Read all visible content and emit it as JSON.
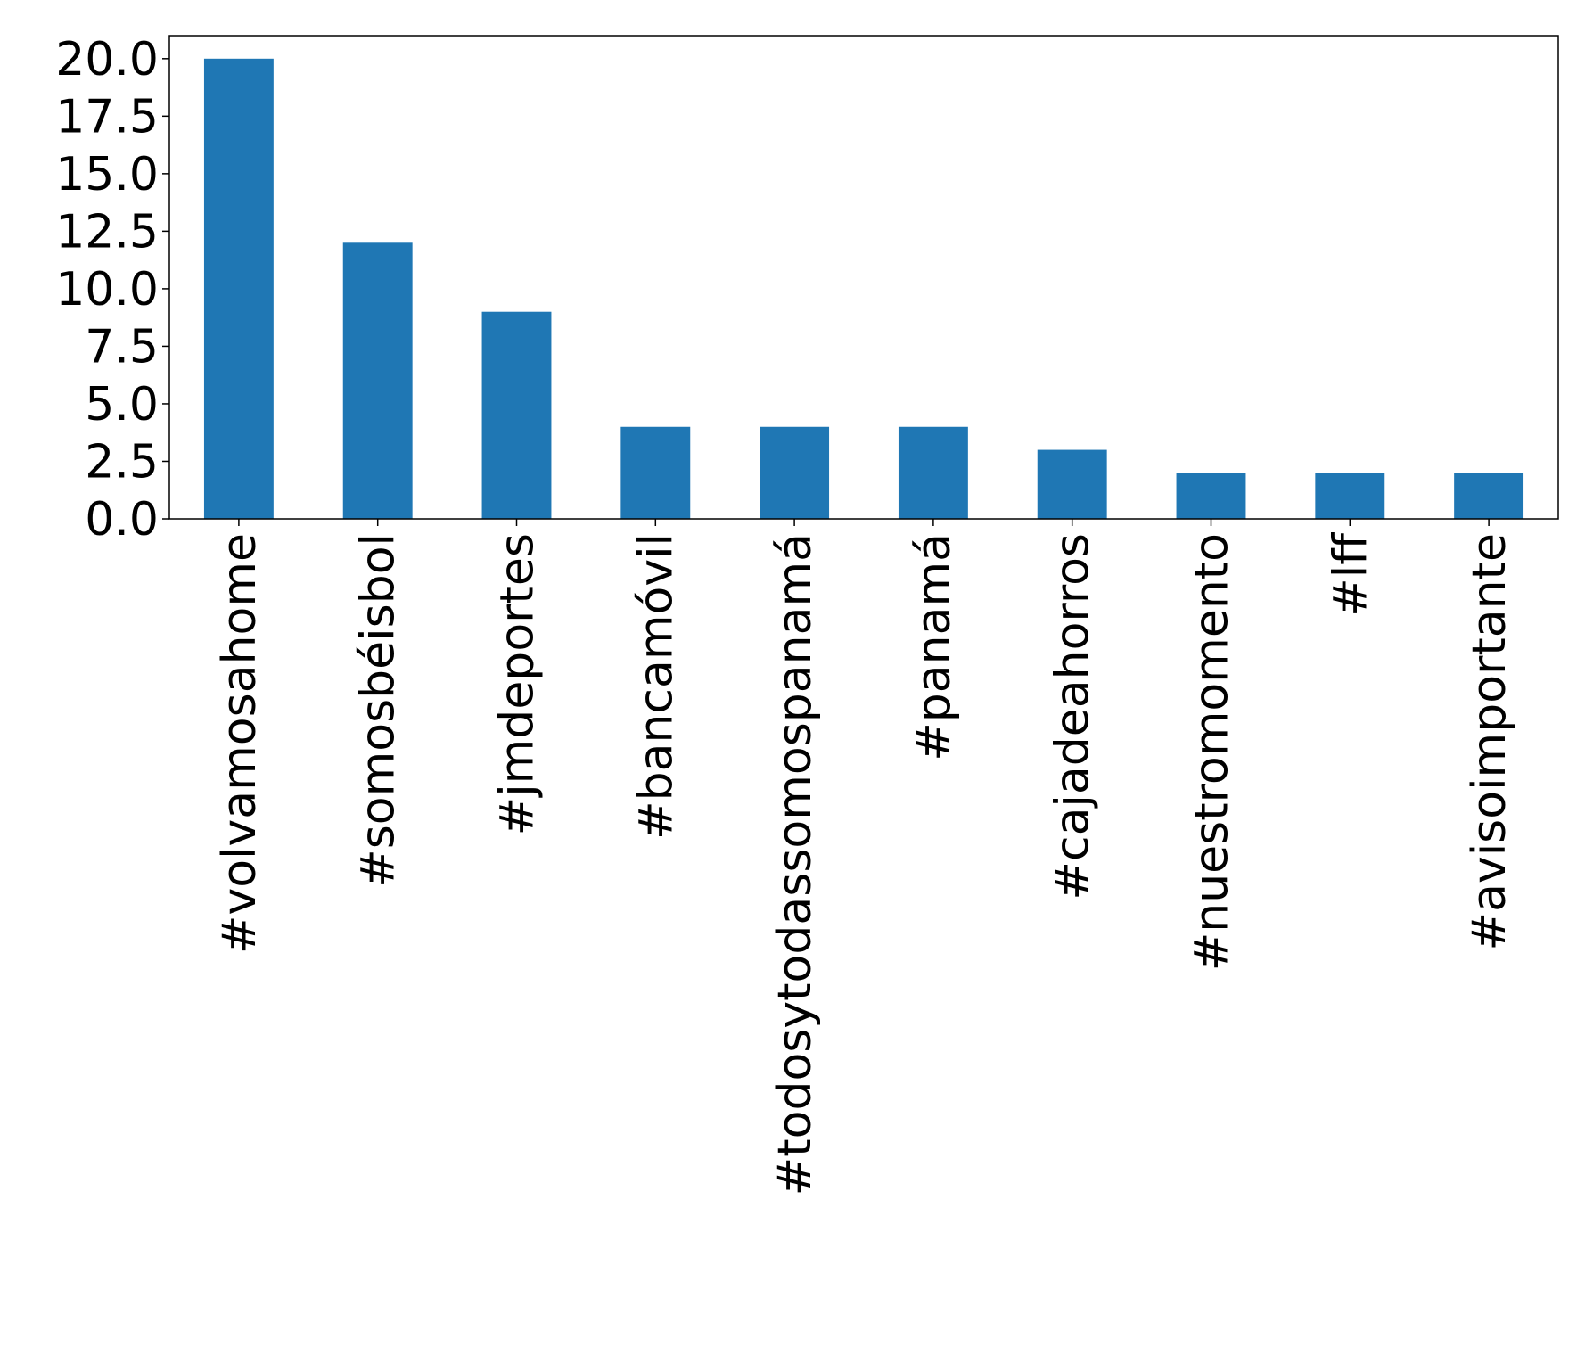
{
  "chart_data": {
    "type": "bar",
    "title": "",
    "xlabel": "",
    "ylabel": "",
    "categories": [
      "#volvamosahome",
      "#somosbéisbol",
      "#jmdeportes",
      "#bancamóvil",
      "#todosytodassomospanamá",
      "#panamá",
      "#cajadeahorros",
      "#nuestromomento",
      "#lff",
      "#avisoimportante"
    ],
    "values": [
      20,
      12,
      9,
      4,
      4,
      4,
      3,
      2,
      2,
      2
    ],
    "ylim": [
      0,
      21
    ],
    "yticks": [
      0.0,
      2.5,
      5.0,
      7.5,
      10.0,
      12.5,
      15.0,
      17.5,
      20.0
    ],
    "ytick_labels": [
      "0.0",
      "2.5",
      "5.0",
      "7.5",
      "10.0",
      "12.5",
      "15.0",
      "17.5",
      "20.0"
    ],
    "grid": false,
    "legend": "none",
    "colors": {
      "bar": "#1f77b4",
      "axis": "#000000",
      "background": "#ffffff"
    }
  }
}
